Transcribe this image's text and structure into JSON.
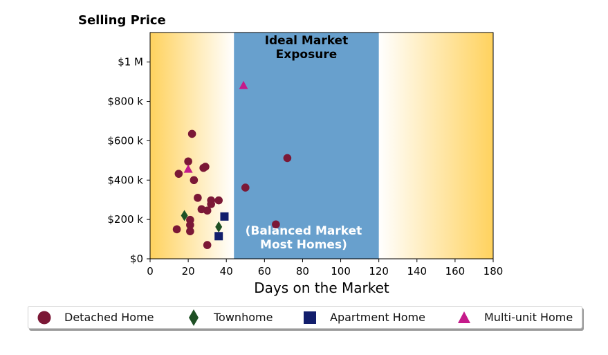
{
  "chart_data": {
    "type": "scatter",
    "title": "Selling Price",
    "xlabel": "Days on the Market",
    "ylabel": "",
    "xlim": [
      0,
      180
    ],
    "ylim": [
      0,
      1150000
    ],
    "x_ticks": [
      0,
      20,
      40,
      60,
      80,
      100,
      120,
      140,
      160,
      180
    ],
    "x_tick_labels": [
      "0",
      "20",
      "40",
      "60",
      "80",
      "100",
      "120",
      "140",
      "160",
      "180"
    ],
    "y_ticks": [
      0,
      200000,
      400000,
      600000,
      800000,
      1000000
    ],
    "y_tick_labels": [
      "$0",
      "$200 k",
      "$400 k",
      "$600 k",
      "$800 k",
      "$1 M"
    ],
    "grid": false,
    "legend_position": "bottom",
    "band": {
      "x_start": 44,
      "x_end": 120,
      "color": "#68a0cd",
      "top_label": [
        "Ideal Market",
        "Exposure"
      ],
      "bottom_label": [
        "(Balanced Market",
        "Most Homes)"
      ]
    },
    "background_gradient_color": "#ffd25e",
    "series": [
      {
        "name": "Detached Home",
        "marker": "circle",
        "color": "#7b1836",
        "points": [
          [
            22,
            635000
          ],
          [
            20,
            495000
          ],
          [
            29,
            468000
          ],
          [
            28,
            462000
          ],
          [
            15,
            432000
          ],
          [
            23,
            400000
          ],
          [
            25,
            310000
          ],
          [
            32,
            297000
          ],
          [
            36,
            297000
          ],
          [
            32,
            278000
          ],
          [
            27,
            252000
          ],
          [
            30,
            245000
          ],
          [
            21,
            198000
          ],
          [
            21,
            172000
          ],
          [
            14,
            150000
          ],
          [
            21,
            140000
          ],
          [
            30,
            70000
          ],
          [
            50,
            362000
          ],
          [
            72,
            512000
          ],
          [
            66,
            175000
          ]
        ]
      },
      {
        "name": "Townhome",
        "marker": "diamond",
        "color": "#1e5024",
        "points": [
          [
            18,
            220000
          ],
          [
            36,
            162000
          ]
        ]
      },
      {
        "name": "Apartment Home",
        "marker": "square",
        "color": "#121e6c",
        "points": [
          [
            39,
            215000
          ],
          [
            36,
            115000
          ]
        ]
      },
      {
        "name": "Multi-unit Home",
        "marker": "triangle",
        "color": "#c51a8a",
        "points": [
          [
            49,
            880000
          ],
          [
            20,
            455000
          ]
        ]
      }
    ]
  }
}
